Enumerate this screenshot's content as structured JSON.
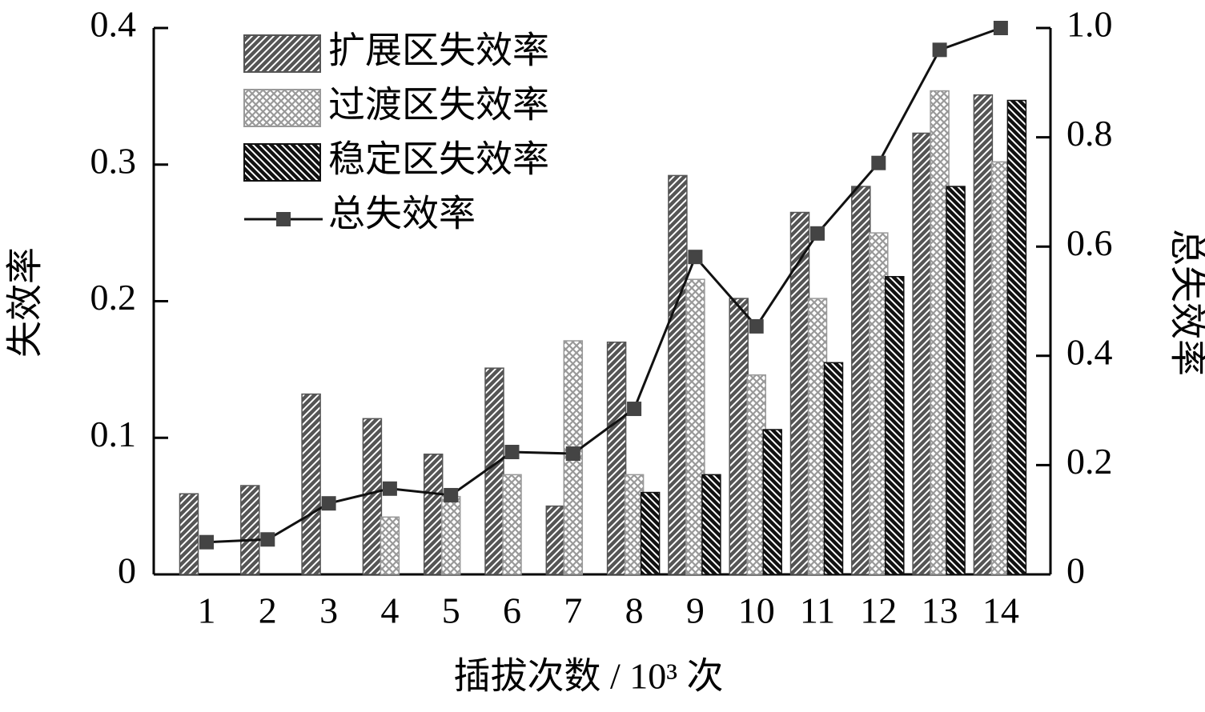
{
  "chart_data": {
    "type": "bar-line",
    "x_label": "插拔次数 / 10³ 次",
    "y_label": "失效率",
    "y2_label": "总失效率",
    "categories": [
      "1",
      "2",
      "3",
      "4",
      "5",
      "6",
      "7",
      "8",
      "9",
      "10",
      "11",
      "12",
      "13",
      "14"
    ],
    "series": [
      {
        "name": "扩展区失效率",
        "color": "#555555",
        "pattern": "/",
        "values": [
          0.059,
          0.065,
          0.132,
          0.114,
          0.088,
          0.151,
          0.05,
          0.17,
          0.292,
          0.202,
          0.265,
          0.284,
          0.323,
          0.351
        ]
      },
      {
        "name": "过渡区失效率",
        "color": "#999999",
        "pattern": "x",
        "values": [
          0,
          0,
          0,
          0.042,
          0.057,
          0.073,
          0.171,
          0.073,
          0.216,
          0.146,
          0.202,
          0.25,
          0.354,
          0.302
        ]
      },
      {
        "name": "稳定区失效率",
        "color": "#111111",
        "pattern": "\\",
        "values": [
          0,
          0,
          0,
          0,
          0,
          0,
          0,
          0.06,
          0.073,
          0.106,
          0.155,
          0.218,
          0.284,
          0.347
        ]
      },
      {
        "name": "总失效率",
        "color": "#111111",
        "marker_color": "#444444",
        "axis": "y2",
        "kind": "line",
        "values": [
          0.059,
          0.064,
          0.13,
          0.157,
          0.145,
          0.224,
          0.221,
          0.303,
          0.581,
          0.454,
          0.624,
          0.753,
          0.96,
          1.0
        ]
      }
    ],
    "ylim": [
      0,
      0.4
    ],
    "yticks": [
      0,
      0.1,
      0.2,
      0.3,
      0.4
    ],
    "y2lim": [
      0,
      1.0
    ],
    "y2ticks": [
      0,
      0.2,
      0.4,
      0.6,
      0.8,
      {
        "value": 1.0,
        "label": "1.0"
      }
    ],
    "legend": "upper left"
  }
}
